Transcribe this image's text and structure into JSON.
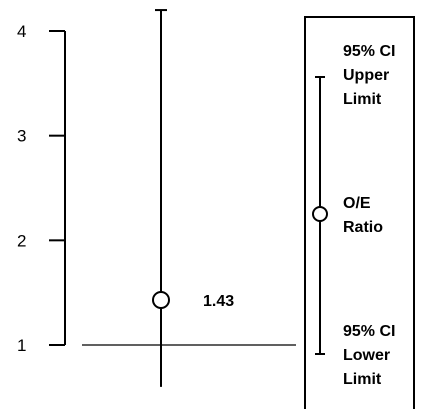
{
  "chart_data": {
    "type": "scatter",
    "title": "",
    "xlabel": "",
    "ylabel": "",
    "ylim": [
      1,
      4
    ],
    "yticks": [
      {
        "value": 1,
        "label": "1"
      },
      {
        "value": 2,
        "label": "2"
      },
      {
        "value": 3,
        "label": "3"
      },
      {
        "value": 4,
        "label": "4"
      }
    ],
    "reference_line": 1,
    "points": [
      {
        "estimate": 1.43,
        "label": "1.43",
        "ci_lower": 0.6,
        "ci_upper": 4.2
      }
    ],
    "grid": false,
    "legend": {
      "placement": "right",
      "upper": [
        "95% CI",
        "Upper",
        "Limit"
      ],
      "middle": [
        "O/E",
        "Ratio"
      ],
      "lower": [
        "95% CI",
        "Lower",
        "Limit"
      ]
    }
  },
  "colors": {
    "ink": "#000000",
    "background": "#ffffff"
  }
}
